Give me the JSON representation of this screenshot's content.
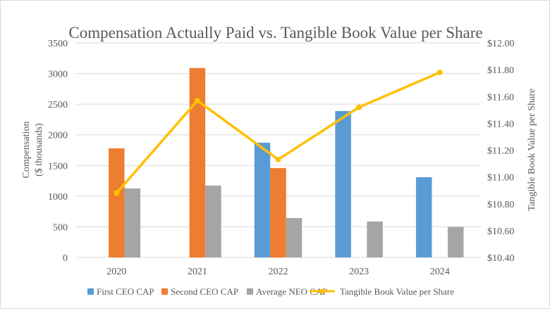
{
  "chart_data": {
    "type": "bar",
    "title": "Compensation Actually Paid vs. Tangible Book Value per Share",
    "categories": [
      "2020",
      "2021",
      "2022",
      "2023",
      "2024"
    ],
    "ylabel": "Compensation ($ thousands)",
    "ylabel_lines": [
      "Compensation",
      "($ thousands)"
    ],
    "y2label": "Tangible Book Value per Share",
    "ylim": [
      0,
      3500
    ],
    "y_ticks": [
      "0",
      "500",
      "1000",
      "1500",
      "2000",
      "2500",
      "3000",
      "3500"
    ],
    "y2lim": [
      10.4,
      12.0
    ],
    "y2_ticks": [
      "$10.40",
      "$10.60",
      "$10.80",
      "$11.00",
      "$11.20",
      "$11.40",
      "$11.60",
      "$11.80",
      "$12.00"
    ],
    "grid": true,
    "legend_position": "bottom",
    "series": [
      {
        "name": "First CEO CAP",
        "type": "bar",
        "color": "#5b9bd5",
        "values": [
          null,
          null,
          1872,
          2389,
          1309
        ]
      },
      {
        "name": "Second CEO CAP",
        "type": "bar",
        "color": "#ed7d31",
        "values": [
          1780,
          3090,
          1459,
          null,
          null
        ]
      },
      {
        "name": "Average NEO CAP",
        "type": "bar",
        "color": "#a5a5a5",
        "values": [
          1126,
          1172,
          643,
          586,
          498
        ]
      },
      {
        "name": "Tangible Book Value per Share",
        "type": "line",
        "axis": "right",
        "color": "#ffc000",
        "values": [
          10.88,
          11.57,
          11.13,
          11.52,
          11.78
        ]
      }
    ]
  }
}
